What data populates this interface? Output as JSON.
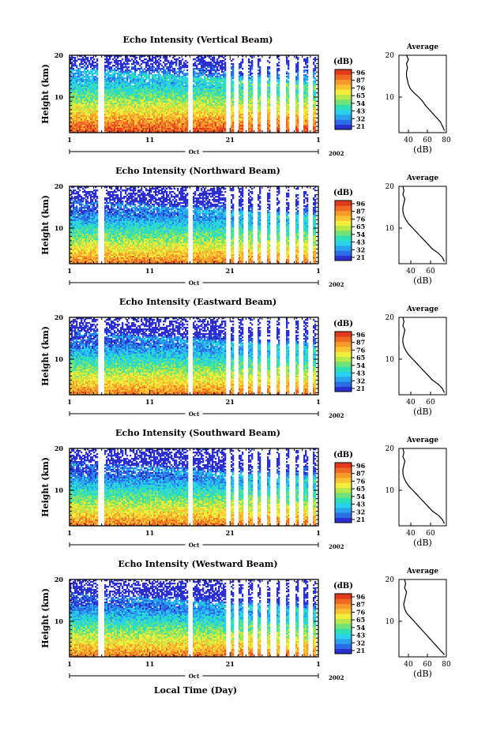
{
  "year_label": "2002",
  "month_label": "Oct",
  "bottom_xlabel": "Local Time (Day)",
  "ylabel": "Height (km)",
  "avg_title": "Average",
  "avg_xlabel": "(dB)",
  "colorbar": {
    "unit": "(dB)",
    "ticks": [
      "96",
      "87",
      "76",
      "65",
      "54",
      "43",
      "32",
      "21"
    ],
    "colors": [
      "#2b2fd0",
      "#2a6de6",
      "#2aa3ee",
      "#27d2ea",
      "#2ee0b4",
      "#6fe27a",
      "#b7e84a",
      "#f2ef3c",
      "#f7c531",
      "#f59a2b",
      "#ee6a24",
      "#e33a1e"
    ]
  },
  "chart_data": [
    {
      "type": "heatmap",
      "title": "Echo Intensity (Vertical Beam)",
      "xlabel": "",
      "ylabel": "Height (km)",
      "x_ticks": [
        "1",
        "11",
        "21",
        "1"
      ],
      "y_ticks": [
        "20",
        "10"
      ],
      "xlim": [
        1,
        32
      ],
      "ylim": [
        1.5,
        20
      ],
      "zlim": [
        21,
        96
      ],
      "average_profile": {
        "x_ticks": [
          "40",
          "60",
          "80"
        ],
        "xlim": [
          30,
          80
        ],
        "ylim": [
          1.5,
          20
        ],
        "height_km": [
          2,
          3,
          4,
          5,
          6,
          7,
          8,
          9,
          10,
          11,
          12,
          13,
          14,
          15,
          16,
          17,
          18,
          19,
          20
        ],
        "value_db": [
          78,
          76,
          74,
          70,
          66,
          62,
          58,
          55,
          51,
          46,
          42,
          40,
          39,
          38,
          38,
          39,
          38,
          40,
          38
        ]
      }
    },
    {
      "type": "heatmap",
      "title": "Echo Intensity (Northward Beam)",
      "xlabel": "",
      "ylabel": "Height (km)",
      "x_ticks": [
        "1",
        "11",
        "21",
        "1"
      ],
      "y_ticks": [
        "20",
        "10"
      ],
      "xlim": [
        1,
        32
      ],
      "ylim": [
        1.5,
        20
      ],
      "zlim": [
        21,
        96
      ],
      "average_profile": {
        "x_ticks": [
          "40",
          "60"
        ],
        "xlim": [
          28,
          76
        ],
        "ylim": [
          1.5,
          20
        ],
        "height_km": [
          2,
          3,
          4,
          5,
          6,
          7,
          8,
          9,
          10,
          11,
          12,
          13,
          14,
          15,
          16,
          17,
          18,
          19,
          20
        ],
        "value_db": [
          74,
          72,
          68,
          62,
          58,
          54,
          50,
          46,
          42,
          38,
          35,
          33,
          32,
          32,
          33,
          34,
          32,
          33,
          32
        ]
      }
    },
    {
      "type": "heatmap",
      "title": "Echo Intensity (Eastward Beam)",
      "xlabel": "",
      "ylabel": "Height (km)",
      "x_ticks": [
        "1",
        "11",
        "21",
        "1"
      ],
      "y_ticks": [
        "20",
        "10"
      ],
      "xlim": [
        1,
        32
      ],
      "ylim": [
        1.5,
        20
      ],
      "zlim": [
        21,
        96
      ],
      "average_profile": {
        "x_ticks": [
          "40",
          "60"
        ],
        "xlim": [
          28,
          76
        ],
        "ylim": [
          1.5,
          20
        ],
        "height_km": [
          2,
          3,
          4,
          5,
          6,
          7,
          8,
          9,
          10,
          11,
          12,
          13,
          14,
          15,
          16,
          17,
          18,
          19,
          20
        ],
        "value_db": [
          74,
          72,
          68,
          62,
          58,
          54,
          50,
          46,
          42,
          38,
          35,
          33,
          32,
          32,
          33,
          34,
          32,
          33,
          32
        ]
      }
    },
    {
      "type": "heatmap",
      "title": "Echo Intensity (Southward Beam)",
      "xlabel": "",
      "ylabel": "Height (km)",
      "x_ticks": [
        "1",
        "11",
        "21",
        "1"
      ],
      "y_ticks": [
        "20",
        "10"
      ],
      "xlim": [
        1,
        32
      ],
      "ylim": [
        1.5,
        20
      ],
      "zlim": [
        21,
        96
      ],
      "average_profile": {
        "x_ticks": [
          "40",
          "60"
        ],
        "xlim": [
          28,
          76
        ],
        "ylim": [
          1.5,
          20
        ],
        "height_km": [
          2,
          3,
          4,
          5,
          6,
          7,
          8,
          9,
          10,
          11,
          12,
          13,
          14,
          15,
          16,
          17,
          18,
          19,
          20
        ],
        "value_db": [
          74,
          72,
          68,
          62,
          58,
          54,
          50,
          46,
          42,
          38,
          35,
          33,
          32,
          32,
          33,
          34,
          32,
          33,
          32
        ]
      }
    },
    {
      "type": "heatmap",
      "title": "Echo Intensity (Westward Beam)",
      "xlabel": "Local Time (Day)",
      "ylabel": "Height (km)",
      "x_ticks": [
        "1",
        "11",
        "21",
        "1"
      ],
      "y_ticks": [
        "20",
        "10"
      ],
      "xlim": [
        1,
        32
      ],
      "ylim": [
        1.5,
        20
      ],
      "zlim": [
        21,
        96
      ],
      "average_profile": {
        "x_ticks": [
          "40",
          "60",
          "80"
        ],
        "xlim": [
          30,
          80
        ],
        "ylim": [
          1.5,
          20
        ],
        "height_km": [
          2,
          3,
          4,
          5,
          6,
          7,
          8,
          9,
          10,
          11,
          12,
          13,
          14,
          15,
          16,
          17,
          18,
          19,
          20
        ],
        "value_db": [
          78,
          74,
          70,
          66,
          62,
          58,
          54,
          50,
          46,
          42,
          38,
          36,
          35,
          36,
          37,
          38,
          36,
          37,
          36
        ]
      }
    }
  ]
}
